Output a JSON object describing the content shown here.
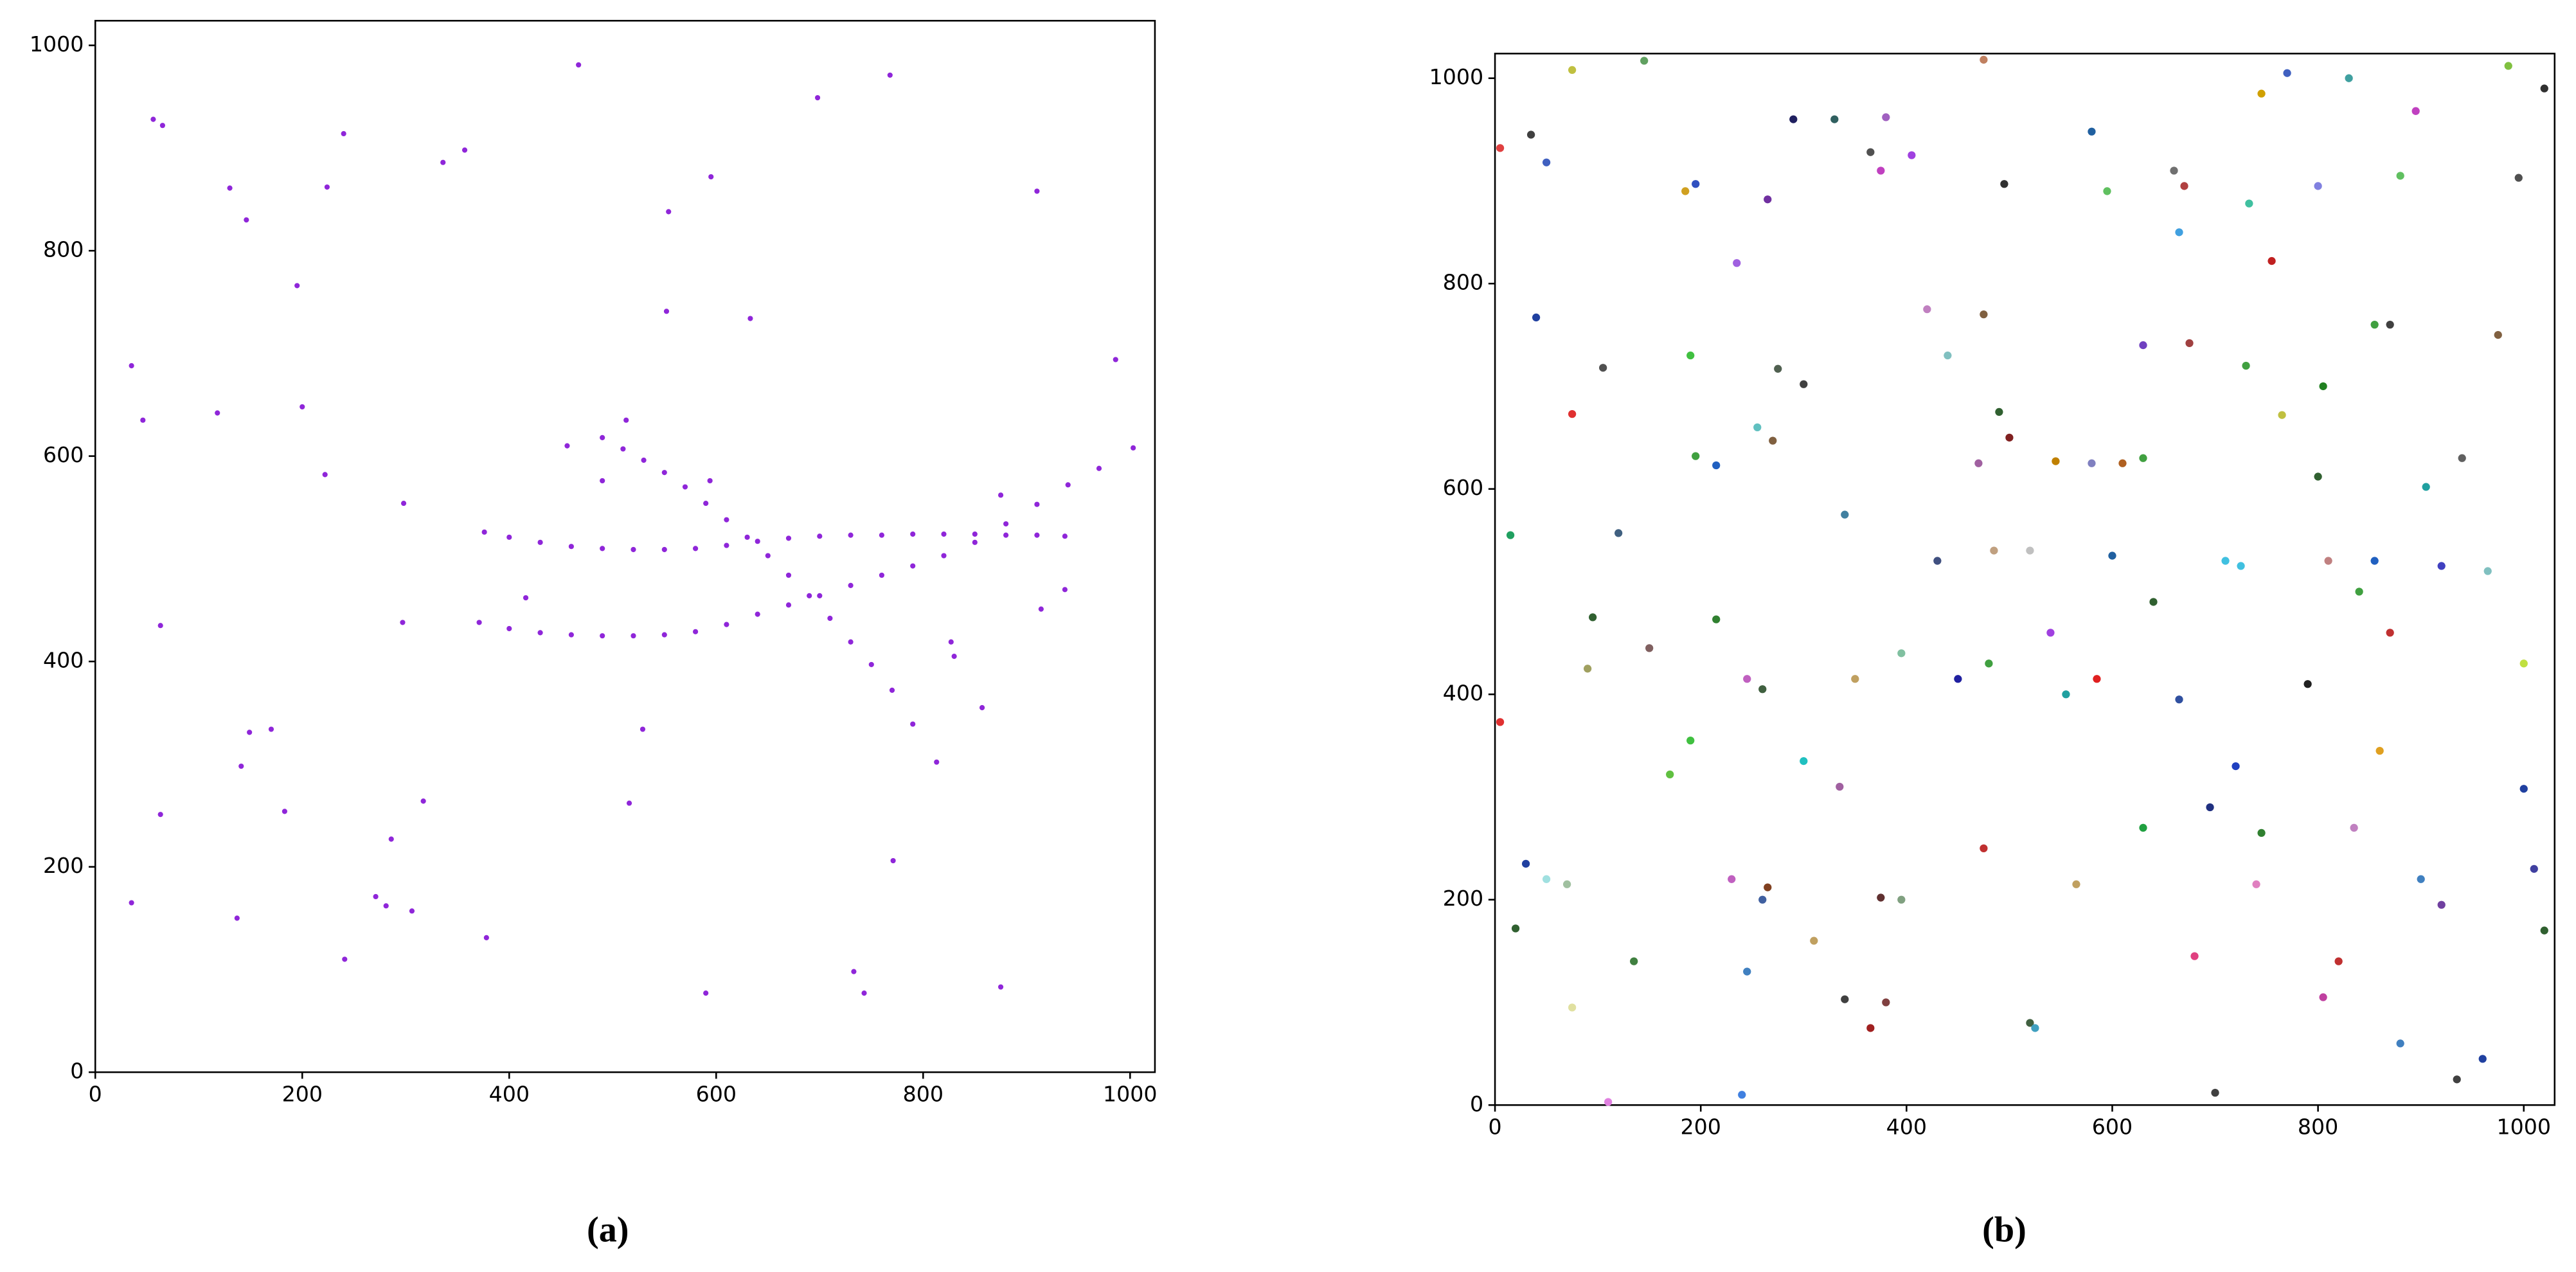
{
  "chart_data": [
    {
      "type": "scatter",
      "caption": "(a)",
      "color": "#8f26d9",
      "xlim": [
        0,
        1024
      ],
      "ylim": [
        0,
        1024
      ],
      "xticks": [
        0,
        200,
        400,
        600,
        800,
        1000
      ],
      "yticks": [
        0,
        200,
        400,
        600,
        800,
        1000
      ],
      "x": [
        56,
        65,
        35,
        46,
        130,
        146,
        195,
        240,
        224,
        336,
        357,
        467,
        698,
        768,
        595,
        554,
        552,
        633,
        910,
        986,
        118,
        200,
        222,
        298,
        456,
        513,
        490,
        594,
        875,
        937,
        914,
        827,
        830,
        857,
        416,
        297,
        63,
        149,
        170,
        141,
        183,
        63,
        317,
        286,
        516,
        529,
        771,
        271,
        281,
        306,
        35,
        137,
        241,
        378,
        590,
        733,
        743,
        875,
        376,
        400,
        430,
        460,
        490,
        520,
        550,
        580,
        610,
        640,
        670,
        700,
        730,
        760,
        790,
        820,
        850,
        880,
        910,
        937,
        371,
        400,
        430,
        460,
        490,
        520,
        550,
        580,
        610,
        640,
        670,
        700,
        730,
        760,
        790,
        820,
        850,
        880,
        910,
        940,
        970,
        1003,
        490,
        510,
        530,
        550,
        570,
        590,
        610,
        630,
        650,
        670,
        690,
        710,
        730,
        750,
        770,
        790,
        813
      ],
      "values": [
        928,
        922,
        688,
        635,
        861,
        830,
        766,
        914,
        862,
        886,
        898,
        981,
        949,
        971,
        872,
        838,
        741,
        734,
        858,
        694,
        642,
        648,
        582,
        554,
        610,
        635,
        576,
        576,
        562,
        470,
        451,
        419,
        405,
        355,
        462,
        438,
        435,
        331,
        334,
        298,
        254,
        251,
        264,
        227,
        262,
        334,
        206,
        171,
        162,
        157,
        165,
        150,
        110,
        131,
        77,
        98,
        77,
        83,
        526,
        521,
        516,
        512,
        510,
        509,
        509,
        510,
        513,
        517,
        520,
        522,
        523,
        523,
        524,
        524,
        524,
        523,
        523,
        522,
        438,
        432,
        428,
        426,
        425,
        425,
        426,
        429,
        436,
        446,
        455,
        464,
        474,
        484,
        493,
        503,
        516,
        534,
        553,
        572,
        588,
        608,
        618,
        607,
        596,
        584,
        570,
        554,
        538,
        521,
        503,
        484,
        464,
        442,
        419,
        397,
        372,
        339,
        302
      ]
    },
    {
      "type": "scatter",
      "caption": "(b)",
      "xlim": [
        0,
        1030
      ],
      "ylim": [
        0,
        1024
      ],
      "xticks": [
        0,
        200,
        400,
        600,
        800,
        1000
      ],
      "yticks": [
        0,
        200,
        400,
        600,
        800,
        1000
      ],
      "x": [
        5,
        35,
        75,
        145,
        185,
        195,
        265,
        290,
        330,
        365,
        375,
        380,
        405,
        475,
        495,
        580,
        595,
        660,
        665,
        670,
        733,
        770,
        745,
        755,
        800,
        830,
        880,
        895,
        985,
        995,
        1020,
        50,
        40,
        75,
        105,
        190,
        195,
        215,
        235,
        255,
        270,
        275,
        300,
        340,
        420,
        440,
        470,
        475,
        490,
        500,
        520,
        545,
        580,
        610,
        630,
        630,
        675,
        730,
        765,
        800,
        805,
        855,
        870,
        855,
        840,
        870,
        905,
        940,
        965,
        975,
        1000,
        15,
        120,
        95,
        90,
        150,
        215,
        245,
        260,
        300,
        335,
        350,
        395,
        430,
        450,
        480,
        485,
        540,
        555,
        585,
        600,
        640,
        665,
        710,
        725,
        790,
        810,
        920,
        5,
        30,
        50,
        70,
        20,
        75,
        135,
        170,
        190,
        230,
        245,
        260,
        265,
        310,
        340,
        365,
        380,
        375,
        395,
        475,
        520,
        525,
        565,
        630,
        680,
        695,
        700,
        720,
        740,
        745,
        805,
        820,
        880,
        920,
        935,
        960,
        1000,
        1010,
        1020,
        860,
        900,
        835,
        240,
        110
      ],
      "values": [
        932,
        945,
        1008,
        1017,
        890,
        897,
        882,
        960,
        960,
        928,
        910,
        962,
        925,
        1018,
        897,
        948,
        890,
        910,
        850,
        895,
        878,
        1005,
        985,
        822,
        895,
        1000,
        905,
        968,
        1012,
        903,
        990,
        918,
        767,
        673,
        718,
        730,
        632,
        623,
        820,
        660,
        647,
        717,
        702,
        575,
        775,
        730,
        625,
        770,
        675,
        650,
        540,
        627,
        625,
        625,
        630,
        740,
        742,
        720,
        672,
        612,
        700,
        760,
        760,
        530,
        500,
        460,
        602,
        630,
        520,
        750,
        430,
        555,
        557,
        475,
        425,
        445,
        473,
        415,
        405,
        335,
        310,
        415,
        440,
        530,
        415,
        430,
        540,
        460,
        400,
        415,
        535,
        490,
        395,
        530,
        525,
        410,
        530,
        525,
        373,
        235,
        220,
        215,
        172,
        95,
        140,
        322,
        355,
        220,
        130,
        200,
        212,
        160,
        103,
        75,
        100,
        202,
        200,
        250,
        80,
        75,
        215,
        270,
        145,
        290,
        12,
        330,
        215,
        265,
        105,
        140,
        60,
        195,
        25,
        45,
        308,
        230,
        170,
        345,
        220,
        270,
        10,
        3
      ],
      "colors": [
        "#e04040",
        "#404040",
        "#c0c040",
        "#60a060",
        "#d0a020",
        "#3050c0",
        "#7030a0",
        "#202060",
        "#306060",
        "#505050",
        "#c040c0",
        "#a060c0",
        "#a040e0",
        "#c08060",
        "#303030",
        "#2060a0",
        "#60c060",
        "#707070",
        "#40a0e0",
        "#b04040",
        "#40c0a0",
        "#4060c0",
        "#d0a000",
        "#c02020",
        "#8080e0",
        "#40a0a0",
        "#60c060",
        "#c040c0",
        "#80c040",
        "#505050",
        "#303030",
        "#4060c0",
        "#2040a0",
        "#e03030",
        "#505050",
        "#40c040",
        "#40a040",
        "#2060c0",
        "#a060e0",
        "#60c0c0",
        "#806040",
        "#506050",
        "#404040",
        "#4080a0",
        "#c080c0",
        "#80c0c0",
        "#a060a0",
        "#806040",
        "#306030",
        "#802020",
        "#c0c0c0",
        "#c08000",
        "#8080c0",
        "#b06020",
        "#40a040",
        "#7040c0",
        "#a04040",
        "#40a040",
        "#c0c040",
        "#306030",
        "#208020",
        "#40a040",
        "#404040",
        "#2060c0",
        "#40a040",
        "#c03030",
        "#20a0a0",
        "#606060",
        "#80c0c0",
        "#806040",
        "#c0e040",
        "#20a060",
        "#406080",
        "#306030",
        "#a0a060",
        "#806060",
        "#308030",
        "#c060c0",
        "#406040",
        "#20c0c0",
        "#a060a0",
        "#c0a060",
        "#80c0a0",
        "#405080",
        "#2020a0",
        "#40a040",
        "#c0a080",
        "#a040e0",
        "#20a0a0",
        "#e02020",
        "#2060a0",
        "#306030",
        "#3050a0",
        "#40c0e0",
        "#40c0e0",
        "#202020",
        "#c08080",
        "#4040c0",
        "#e03030",
        "#2040a0",
        "#a0e0e0",
        "#a0c0a0",
        "#306030",
        "#e0e0a0",
        "#408040",
        "#60c040",
        "#40c040",
        "#c060c0",
        "#4080c0",
        "#4060a0",
        "#804020",
        "#c0a060",
        "#404040",
        "#a02020",
        "#804040",
        "#603030",
        "#80a080",
        "#c03030",
        "#406040",
        "#40a0c0",
        "#c0a060",
        "#20a040",
        "#e04080",
        "#203080",
        "#404040",
        "#2040c0",
        "#e080c0",
        "#308030",
        "#c040a0",
        "#c03030",
        "#4080c0",
        "#7040a0",
        "#404040",
        "#2040a0",
        "#2040a0",
        "#4040a0",
        "#306030",
        "#e0a020",
        "#4080c0",
        "#c080c0",
        "#4080e0",
        "#e080e0"
      ]
    }
  ]
}
